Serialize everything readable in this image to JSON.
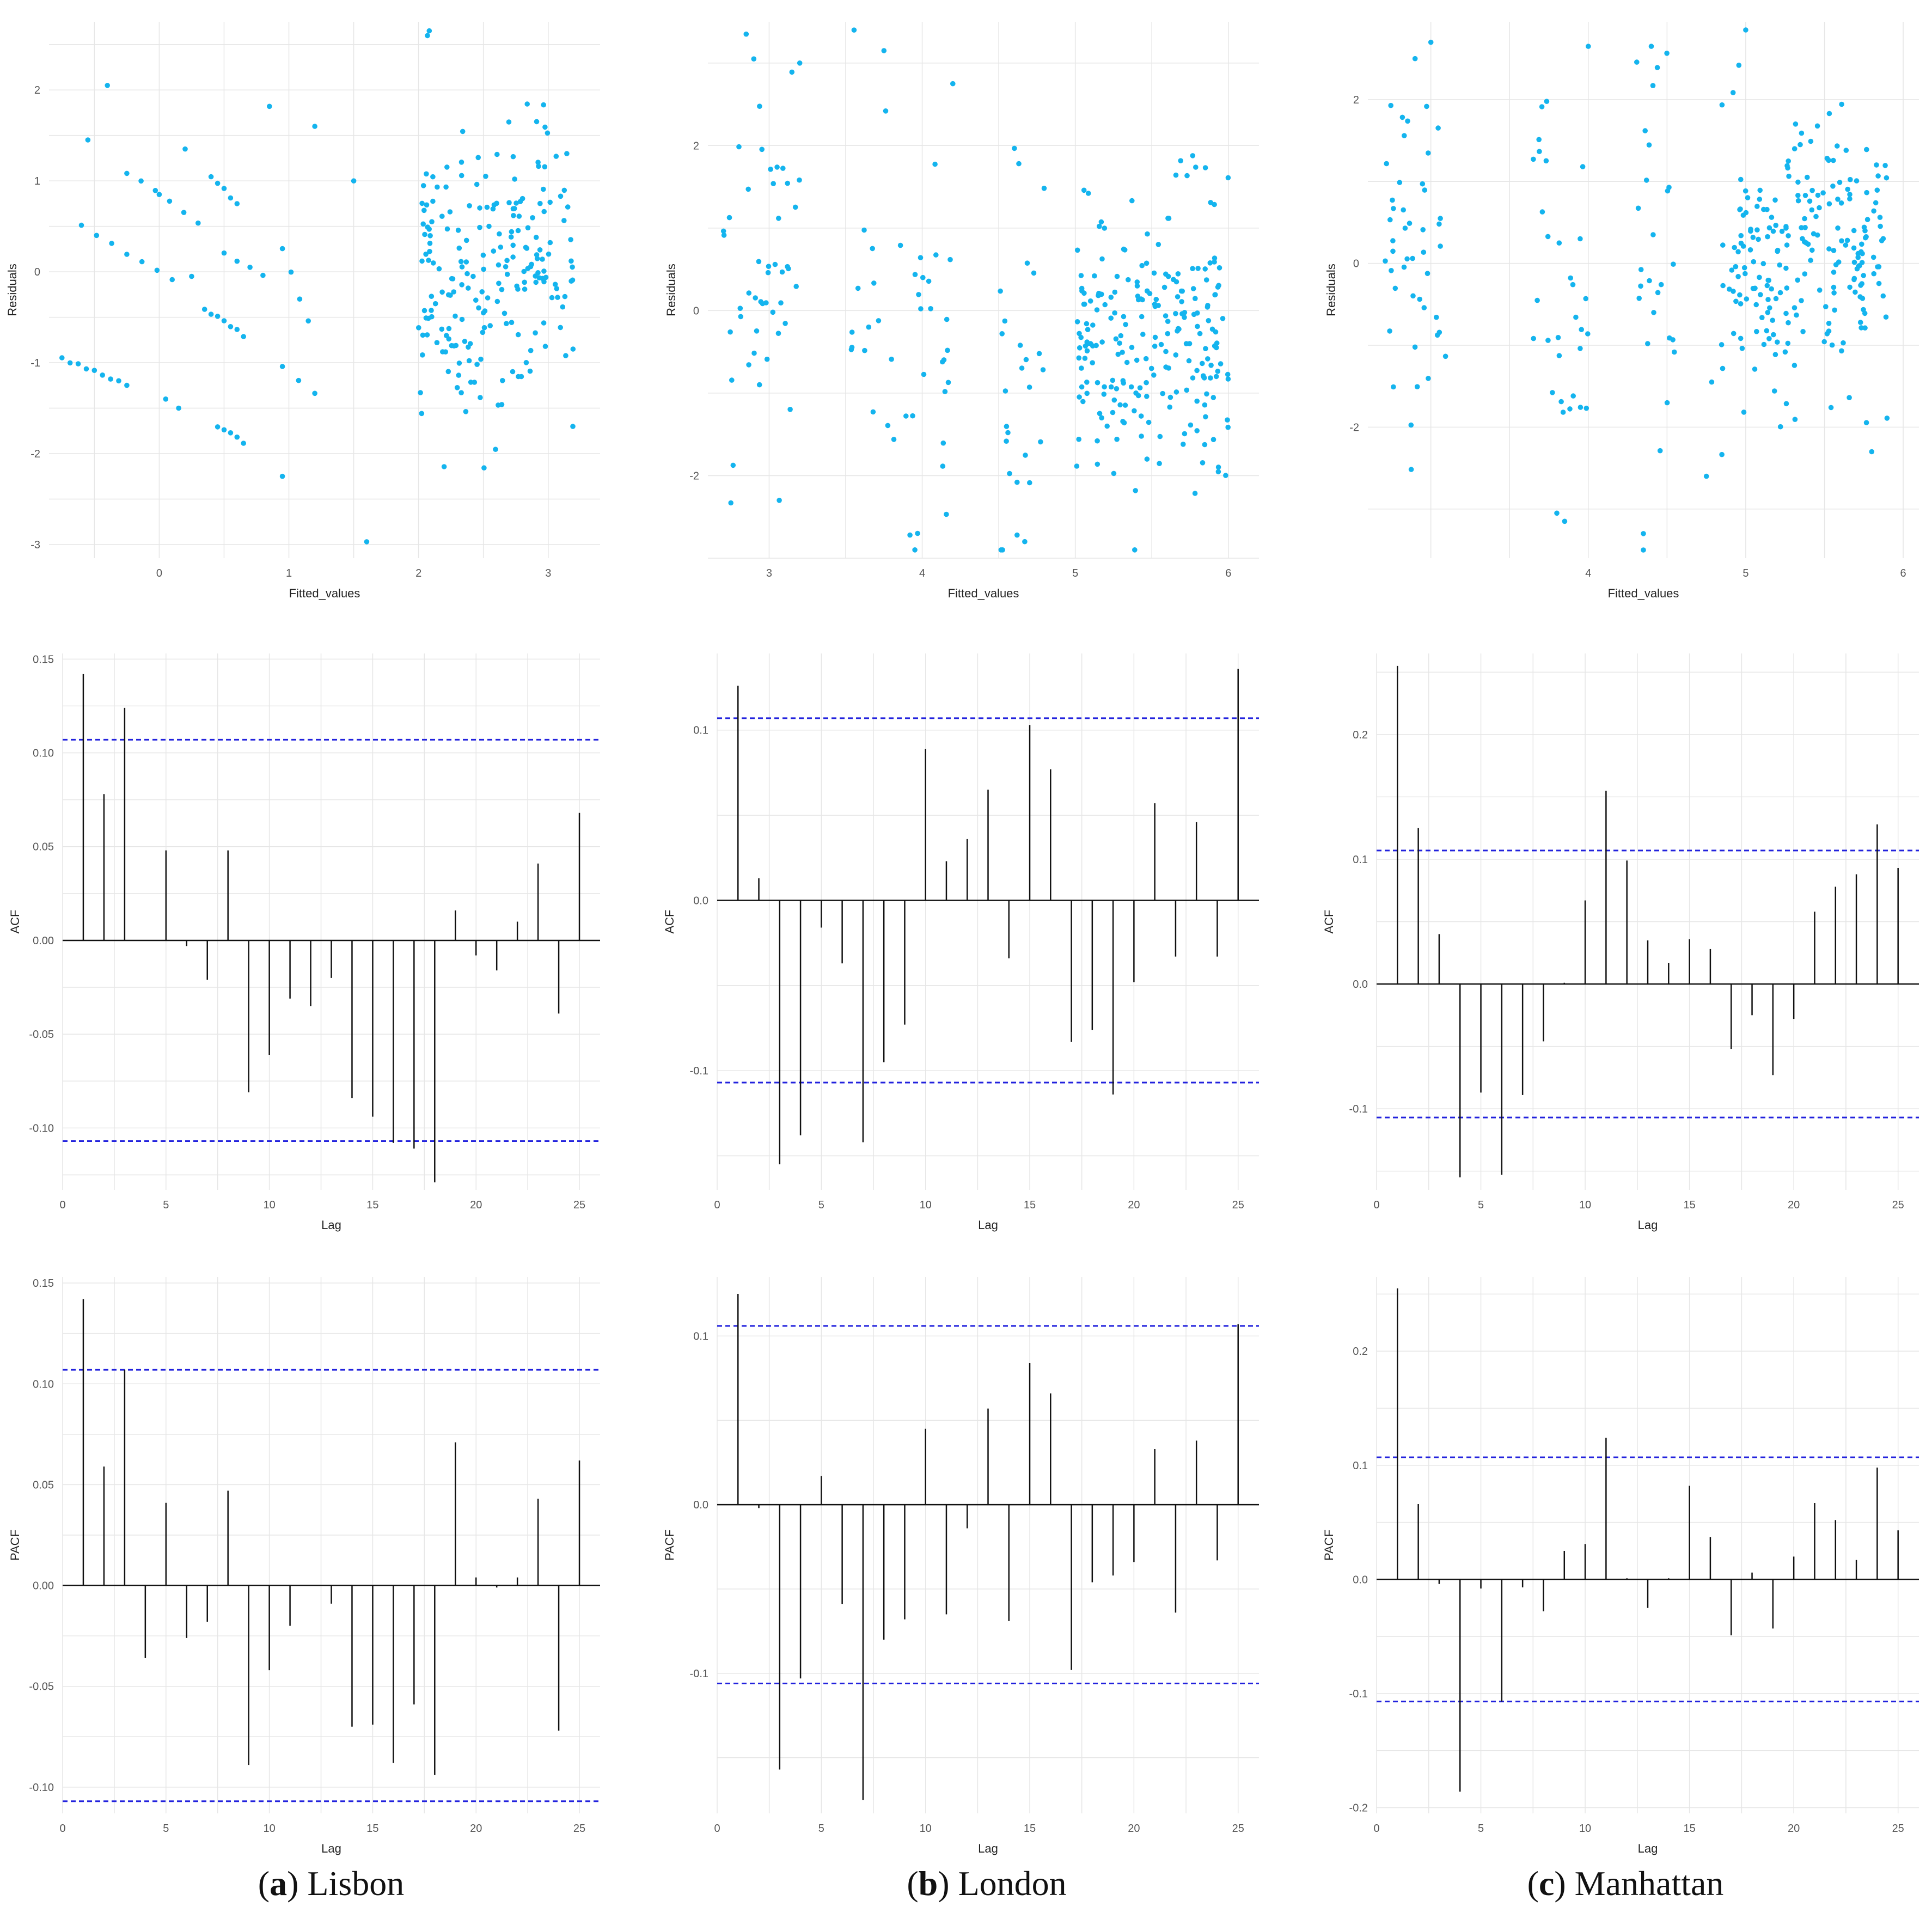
{
  "captions": [
    {
      "letter": "a",
      "city": "Lisbon"
    },
    {
      "letter": "b",
      "city": "London"
    },
    {
      "letter": "c",
      "city": "Manhattan"
    }
  ],
  "colors": {
    "points": "#14b4ee",
    "bars": "#111111",
    "ci": "#2222dd",
    "grid": "#e6e6e6",
    "zero": "#111111"
  },
  "chart_data": [
    {
      "id": "lisbon-residuals",
      "type": "scatter",
      "xlabel": "Fitted_values",
      "ylabel": "Residuals",
      "xlim": [
        -0.85,
        3.4
      ],
      "ylim": [
        -3.15,
        2.75
      ],
      "xticks": [
        0,
        1,
        2,
        3
      ],
      "yticks": [
        -3,
        -2,
        -1,
        0,
        1,
        2
      ],
      "points_model": {
        "n": 300,
        "seed": 11,
        "description": "approximately 300 residual points; dense cluster at fitted values 2.0–3.2, diagonal streaks of points at fitted values -0.8 to 1.0",
        "clusters": [
          {
            "x": [
              2.0,
              3.2
            ],
            "y_mean": 0,
            "y_sd": 0.85,
            "n": 215
          }
        ],
        "streaks": [
          {
            "x0": -0.75,
            "y0": -0.95,
            "x1": -0.25,
            "y1": -1.25,
            "n": 9
          },
          {
            "x0": -0.6,
            "y0": 0.52,
            "x1": 0.1,
            "y1": -0.1,
            "n": 7
          },
          {
            "x0": -0.25,
            "y0": 1.1,
            "x1": 0.3,
            "y1": 0.55,
            "n": 6
          },
          {
            "x0": 0.35,
            "y0": -0.4,
            "x1": 0.65,
            "y1": -0.7,
            "n": 7
          },
          {
            "x0": 0.45,
            "y0": -1.7,
            "x1": 0.65,
            "y1": -1.88,
            "n": 5
          },
          {
            "x0": 0.4,
            "y0": 1.05,
            "x1": 0.6,
            "y1": 0.75,
            "n": 5
          },
          {
            "x0": 0.5,
            "y0": 0.2,
            "x1": 0.8,
            "y1": -0.05,
            "n": 4
          },
          {
            "x0": 0.95,
            "y0": 0.25,
            "x1": 1.15,
            "y1": -0.55,
            "n": 4
          },
          {
            "x0": 0.95,
            "y0": -1.05,
            "x1": 1.2,
            "y1": -1.35,
            "n": 3
          }
        ],
        "extra": [
          [
            -0.4,
            2.05
          ],
          [
            -0.55,
            1.45
          ],
          [
            0.2,
            1.35
          ],
          [
            0.85,
            1.82
          ],
          [
            1.2,
            1.6
          ],
          [
            1.5,
            1.0
          ],
          [
            0.95,
            -2.25
          ],
          [
            1.6,
            -2.97
          ],
          [
            0.05,
            -1.4
          ],
          [
            0.15,
            -1.5
          ],
          [
            0.0,
            0.85
          ],
          [
            0.25,
            -0.05
          ]
        ]
      }
    },
    {
      "id": "london-residuals",
      "type": "scatter",
      "xlabel": "Fitted_values",
      "ylabel": "Residuals",
      "xlim": [
        2.6,
        6.2
      ],
      "ylim": [
        -3.0,
        3.5
      ],
      "xticks": [
        3,
        4,
        5,
        6
      ],
      "yticks": [
        -2,
        0,
        2
      ],
      "points_model": {
        "n": 340,
        "seed": 23,
        "description": "approximately 340 residual points; dense cluster at fitted values 5.0–6.0, vertical bands near 2.7–3.2, 3.5–4.2 and 4.5–4.8",
        "clusters": [
          {
            "x": [
              5.0,
              6.0
            ],
            "y_mean": -0.2,
            "y_sd": 0.8,
            "n": 230
          },
          {
            "x": [
              2.7,
              3.2
            ],
            "y_mean": -0.2,
            "y_sd": 1.3,
            "n": 45
          },
          {
            "x": [
              3.5,
              4.2
            ],
            "y_mean": -0.3,
            "y_sd": 1.3,
            "n": 40
          },
          {
            "x": [
              4.5,
              4.8
            ],
            "y_mean": -0.3,
            "y_sd": 1.3,
            "n": 25
          }
        ],
        "extra": [
          [
            2.85,
            3.35
          ],
          [
            2.9,
            3.05
          ],
          [
            3.2,
            3.0
          ],
          [
            3.75,
            3.15
          ],
          [
            4.2,
            2.75
          ],
          [
            4.62,
            -2.72
          ],
          [
            4.67,
            -2.8
          ],
          [
            3.92,
            -2.72
          ],
          [
            3.97,
            -2.7
          ],
          [
            2.75,
            -2.33
          ]
        ]
      }
    },
    {
      "id": "manhattan-residuals",
      "type": "scatter",
      "xlabel": "Fitted_values",
      "ylabel": "Residuals",
      "xlim": [
        2.6,
        6.1
      ],
      "ylim": [
        -3.6,
        2.95
      ],
      "xticks": [
        4,
        5,
        6
      ],
      "yticks": [
        -2,
        0,
        2
      ],
      "points_model": {
        "n": 330,
        "seed": 37,
        "description": "approximately 330 residual points; dense cluster at fitted values 5.0–5.9, vertical bands near 2.7–3.1, 3.6–4.0 and 4.3–4.6",
        "clusters": [
          {
            "x": [
              4.9,
              5.9
            ],
            "y_mean": 0,
            "y_sd": 0.8,
            "n": 215
          },
          {
            "x": [
              2.7,
              3.1
            ],
            "y_mean": 0,
            "y_sd": 1.2,
            "n": 45
          },
          {
            "x": [
              3.65,
              4.0
            ],
            "y_mean": -0.1,
            "y_sd": 1.2,
            "n": 30
          },
          {
            "x": [
              4.3,
              4.55
            ],
            "y_mean": 0,
            "y_sd": 1.2,
            "n": 25
          },
          {
            "x": [
              4.75,
              5.0
            ],
            "y_mean": -0.2,
            "y_sd": 1.0,
            "n": 15
          }
        ],
        "extra": [
          [
            5.0,
            2.85
          ],
          [
            3.0,
            2.7
          ],
          [
            4.0,
            2.65
          ],
          [
            4.4,
            2.65
          ],
          [
            2.9,
            2.5
          ],
          [
            3.8,
            -3.05
          ],
          [
            4.35,
            -3.3
          ],
          [
            4.35,
            -3.5
          ],
          [
            3.85,
            -3.15
          ],
          [
            5.8,
            -2.3
          ],
          [
            4.75,
            -2.6
          ]
        ]
      }
    },
    {
      "id": "lisbon-acf",
      "type": "bar",
      "xlabel": "Lag",
      "ylabel": "ACF",
      "xlim": [
        0,
        26
      ],
      "ylim": [
        -0.133,
        0.153
      ],
      "xticks": [
        0,
        5,
        10,
        15,
        20,
        25
      ],
      "yticks": [
        -0.1,
        -0.05,
        0.0,
        0.05,
        0.1,
        0.15
      ],
      "ytick_labels": [
        "-0.10",
        "-0.05",
        "0.00",
        "0.05",
        "0.10",
        "0.15"
      ],
      "ci": [
        0.107,
        -0.107
      ],
      "lags": [
        1,
        2,
        3,
        4,
        5,
        6,
        7,
        8,
        9,
        10,
        11,
        12,
        13,
        14,
        15,
        16,
        17,
        18,
        19,
        20,
        21,
        22,
        23,
        24,
        25
      ],
      "values": [
        0.142,
        0.078,
        0.124,
        0.0,
        0.048,
        -0.003,
        -0.021,
        0.048,
        -0.081,
        -0.061,
        -0.031,
        -0.035,
        -0.02,
        -0.084,
        -0.094,
        -0.108,
        -0.111,
        -0.129,
        0.016,
        -0.008,
        -0.016,
        0.01,
        0.041,
        -0.039,
        0.068
      ]
    },
    {
      "id": "london-acf",
      "type": "bar",
      "xlabel": "Lag",
      "ylabel": "ACF",
      "xlim": [
        0,
        26
      ],
      "ylim": [
        -0.17,
        0.145
      ],
      "xticks": [
        0,
        5,
        10,
        15,
        20,
        25
      ],
      "yticks": [
        -0.1,
        0.0,
        0.1
      ],
      "ytick_labels": [
        "-0.1",
        "0.0",
        "0.1"
      ],
      "ci": [
        0.107,
        -0.107
      ],
      "lags": [
        1,
        2,
        3,
        4,
        5,
        6,
        7,
        8,
        9,
        10,
        11,
        12,
        13,
        14,
        15,
        16,
        17,
        18,
        19,
        20,
        21,
        22,
        23,
        24,
        25
      ],
      "values": [
        0.126,
        0.013,
        -0.155,
        -0.138,
        -0.016,
        -0.037,
        -0.142,
        -0.095,
        -0.073,
        0.089,
        0.023,
        0.036,
        0.065,
        -0.034,
        0.103,
        0.077,
        -0.083,
        -0.076,
        -0.114,
        -0.048,
        0.057,
        -0.033,
        0.046,
        -0.033,
        0.136
      ]
    },
    {
      "id": "manhattan-acf",
      "type": "bar",
      "xlabel": "Lag",
      "ylabel": "ACF",
      "xlim": [
        0,
        26
      ],
      "ylim": [
        -0.165,
        0.265
      ],
      "xticks": [
        0,
        5,
        10,
        15,
        20,
        25
      ],
      "yticks": [
        -0.1,
        0.0,
        0.1,
        0.2
      ],
      "ytick_labels": [
        "-0.1",
        "0.0",
        "0.1",
        "0.2"
      ],
      "ci": [
        0.107,
        -0.107
      ],
      "lags": [
        1,
        2,
        3,
        4,
        5,
        6,
        7,
        8,
        9,
        10,
        11,
        12,
        13,
        14,
        15,
        16,
        17,
        18,
        19,
        20,
        21,
        22,
        23,
        24,
        25
      ],
      "values": [
        0.255,
        0.125,
        0.04,
        -0.155,
        -0.087,
        -0.153,
        -0.089,
        -0.046,
        0.001,
        0.067,
        0.155,
        0.099,
        0.035,
        0.017,
        0.036,
        0.028,
        -0.052,
        -0.025,
        -0.073,
        -0.028,
        0.058,
        0.078,
        0.088,
        0.128,
        0.093
      ]
    },
    {
      "id": "lisbon-pacf",
      "type": "bar",
      "xlabel": "Lag",
      "ylabel": "PACF",
      "xlim": [
        0,
        26
      ],
      "ylim": [
        -0.113,
        0.153
      ],
      "xticks": [
        0,
        5,
        10,
        15,
        20,
        25
      ],
      "yticks": [
        -0.1,
        -0.05,
        0.0,
        0.05,
        0.1,
        0.15
      ],
      "ytick_labels": [
        "-0.10",
        "-0.05",
        "0.00",
        "0.05",
        "0.10",
        "0.15"
      ],
      "ci": [
        0.107,
        -0.107
      ],
      "lags": [
        1,
        2,
        3,
        4,
        5,
        6,
        7,
        8,
        9,
        10,
        11,
        12,
        13,
        14,
        15,
        16,
        17,
        18,
        19,
        20,
        21,
        22,
        23,
        24,
        25
      ],
      "values": [
        0.142,
        0.059,
        0.107,
        -0.036,
        0.041,
        -0.026,
        -0.018,
        0.047,
        -0.089,
        -0.042,
        -0.02,
        0.0,
        -0.009,
        -0.07,
        -0.069,
        -0.088,
        -0.059,
        -0.094,
        0.071,
        0.004,
        -0.001,
        0.004,
        0.043,
        -0.072,
        0.062
      ]
    },
    {
      "id": "london-pacf",
      "type": "bar",
      "xlabel": "Lag",
      "ylabel": "PACF",
      "xlim": [
        0,
        26
      ],
      "ylim": [
        -0.183,
        0.135
      ],
      "xticks": [
        0,
        5,
        10,
        15,
        20,
        25
      ],
      "yticks": [
        -0.1,
        0.0,
        0.1
      ],
      "ytick_labels": [
        "-0.1",
        "0.0",
        "0.1"
      ],
      "ci": [
        0.106,
        -0.106
      ],
      "lags": [
        1,
        2,
        3,
        4,
        5,
        6,
        7,
        8,
        9,
        10,
        11,
        12,
        13,
        14,
        15,
        16,
        17,
        18,
        19,
        20,
        21,
        22,
        23,
        24,
        25
      ],
      "values": [
        0.125,
        -0.002,
        -0.157,
        -0.103,
        0.017,
        -0.059,
        -0.175,
        -0.08,
        -0.068,
        0.045,
        -0.065,
        -0.014,
        0.057,
        -0.069,
        0.084,
        0.066,
        -0.098,
        -0.046,
        -0.042,
        -0.034,
        0.033,
        -0.064,
        0.038,
        -0.033,
        0.107
      ]
    },
    {
      "id": "manhattan-pacf",
      "type": "bar",
      "xlabel": "Lag",
      "ylabel": "PACF",
      "xlim": [
        0,
        26
      ],
      "ylim": [
        -0.205,
        0.265
      ],
      "xticks": [
        0,
        5,
        10,
        15,
        20,
        25
      ],
      "yticks": [
        -0.2,
        -0.1,
        0.0,
        0.1,
        0.2
      ],
      "ytick_labels": [
        "-0.2",
        "-0.1",
        "0.0",
        "0.1",
        "0.2"
      ],
      "ci": [
        0.107,
        -0.107
      ],
      "lags": [
        1,
        2,
        3,
        4,
        5,
        6,
        7,
        8,
        9,
        10,
        11,
        12,
        13,
        14,
        15,
        16,
        17,
        18,
        19,
        20,
        21,
        22,
        23,
        24,
        25
      ],
      "values": [
        0.255,
        0.066,
        -0.004,
        -0.186,
        -0.008,
        -0.107,
        -0.007,
        -0.028,
        0.025,
        0.031,
        0.124,
        0.001,
        -0.025,
        0.001,
        0.082,
        0.037,
        -0.049,
        0.006,
        -0.043,
        0.02,
        0.067,
        0.052,
        0.017,
        0.098,
        0.043
      ]
    }
  ]
}
